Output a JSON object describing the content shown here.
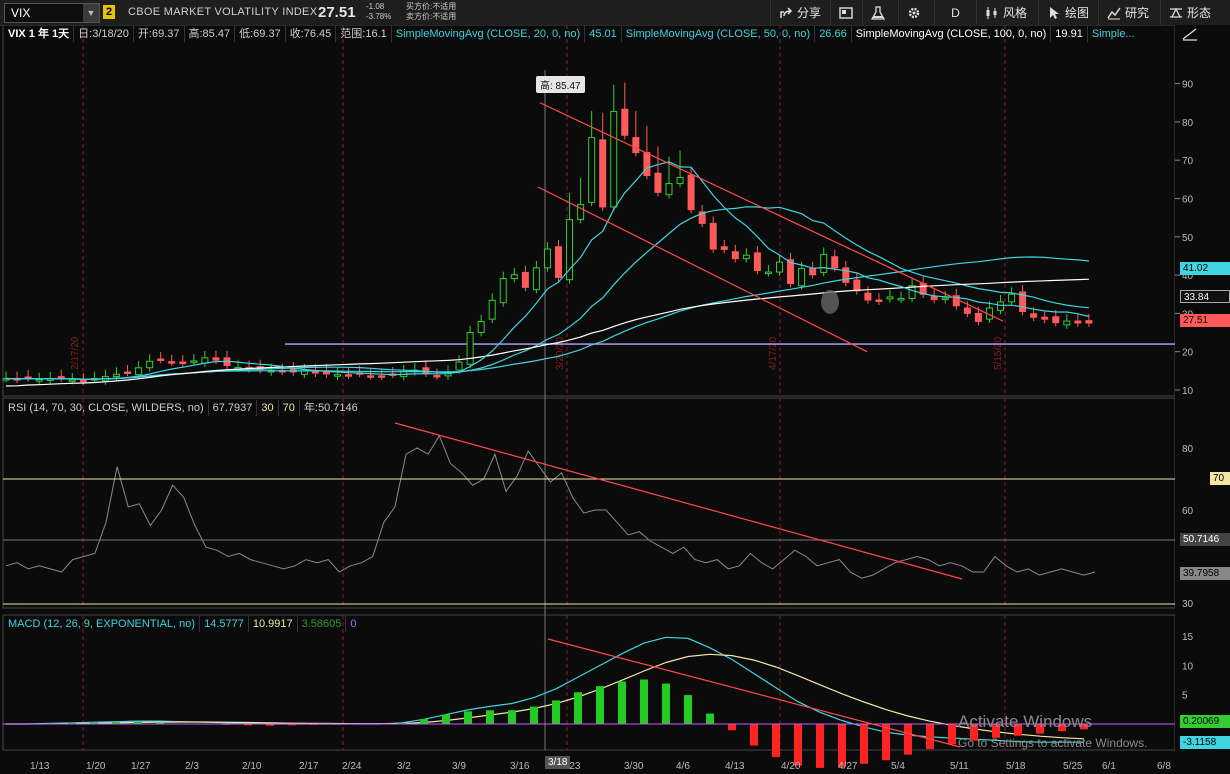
{
  "toolbar": {
    "symbol": "VIX",
    "link_badge": "2",
    "description": "CBOE MARKET VOLATILITY INDEX",
    "last": "27.51",
    "change": "-1.08",
    "change_pct": "-3.78%",
    "bid_label": "买方价:不适用",
    "ask_label": "卖方价:不适用",
    "share_label": "分享",
    "timeframe": "D",
    "style_label": "风格",
    "draw_label": "绘图",
    "study_label": "研究",
    "pattern_label": "形态"
  },
  "price_header": {
    "title": "VIX 1 年 1天",
    "date": "日:3/18/20",
    "open": "开:69.37",
    "high": "高:85.47",
    "low": "低:69.37",
    "close": "收:76.45",
    "range": "范围:16.1",
    "sma20_label": "SimpleMovingAvg (CLOSE, 20, 0, no)",
    "sma20_value": "45.01",
    "sma50_label": "SimpleMovingAvg (CLOSE, 50, 0, no)",
    "sma50_value": "26.66",
    "sma100_label": "SimpleMovingAvg (CLOSE, 100, 0, no)",
    "sma100_value": "19.91",
    "more": "Simple..."
  },
  "rsi_header": {
    "label": "RSI (14, 70, 30, CLOSE, WILDERS, no)",
    "value": "67.7937",
    "oversold": "30",
    "overbought": "70",
    "year": "年:50.7146"
  },
  "macd_header": {
    "label": "MACD (12, 26, 9, EXPONENTIAL, no)",
    "value": "14.5777",
    "avg": "10.9917",
    "diff": "3.58605",
    "zero": "0"
  },
  "price_axis": {
    "ticks": [
      "90",
      "80",
      "70",
      "60",
      "50",
      "40",
      "30",
      "20",
      "10"
    ],
    "tag_sma20": "41.02",
    "tag_sma100": "33.84",
    "tag_last": "27.51",
    "high_callout": "高: 85.47"
  },
  "rsi_axis": {
    "ticks": [
      "80",
      "60",
      "40",
      "30"
    ],
    "tag_70": "70",
    "tag_mid": "50.7146",
    "tag_rsi": "39.7958"
  },
  "macd_axis": {
    "ticks": [
      "15",
      "10",
      "5"
    ],
    "tag_zero": "0.20069",
    "tag_macd": "-3.1158"
  },
  "date_axis": {
    "labels": [
      "1/13",
      "1/20",
      "1/27",
      "2/3",
      "2/10",
      "2/17",
      "2/24",
      "3/2",
      "3/9",
      "3/16",
      "3/23",
      "3/30",
      "4/6",
      "4/13",
      "4/20",
      "4/27",
      "5/4",
      "5/11",
      "5/18",
      "5/25",
      "6/1",
      "6/8"
    ],
    "cursor_date": "3/18"
  },
  "vline_labels": [
    "2/17/20",
    "3/20/20",
    "4/17/20",
    "5/15/20"
  ],
  "watermark": {
    "title": "Activate Windows",
    "sub": "Go to Settings to activate Windows."
  },
  "colors": {
    "up": "#33cc33",
    "down": "#ff5a5a",
    "sma20": "#3fd4e0",
    "sma100": "#ffffff",
    "rsi": "#8a8a8a",
    "macd": "#3fd4e0",
    "macd_avg": "#f2e6a6",
    "trend": "#ff4a4a",
    "support": "#b7a8ff",
    "bg": "#0b0b0b"
  }
}
